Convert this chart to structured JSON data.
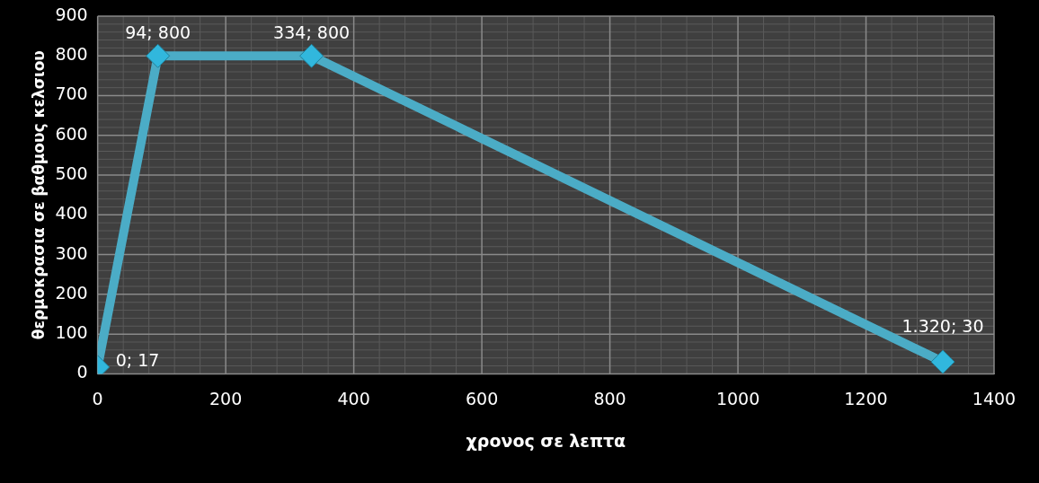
{
  "chart_data": {
    "type": "line",
    "xlabel": "χρονος σε λεπτα",
    "ylabel": "θερμοκρασια σε βαθμους κελσιου",
    "x": [
      0,
      94,
      334,
      1320
    ],
    "series": [
      {
        "color": "#4bacc6",
        "values": [
          17,
          800,
          800,
          30
        ],
        "value_labels": [
          "0; 17",
          "94; 800",
          "334; 800",
          "1.320; 30"
        ]
      }
    ],
    "xlim": [
      0,
      1400
    ],
    "xticks": [
      0,
      200,
      400,
      600,
      800,
      1000,
      1200,
      1400
    ],
    "ylim": [
      0,
      900
    ],
    "yticks": [
      0,
      100,
      200,
      300,
      400,
      500,
      600,
      700,
      800,
      900
    ],
    "grid": true,
    "legend": false,
    "marker": "diamond",
    "line_style": "solid"
  }
}
